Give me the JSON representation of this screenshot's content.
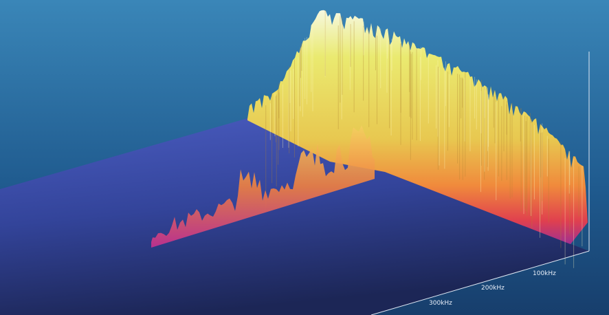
{
  "axis_labels": {
    "frequency": [
      "100kHz",
      "200kHz",
      "300kHz"
    ]
  }
}
